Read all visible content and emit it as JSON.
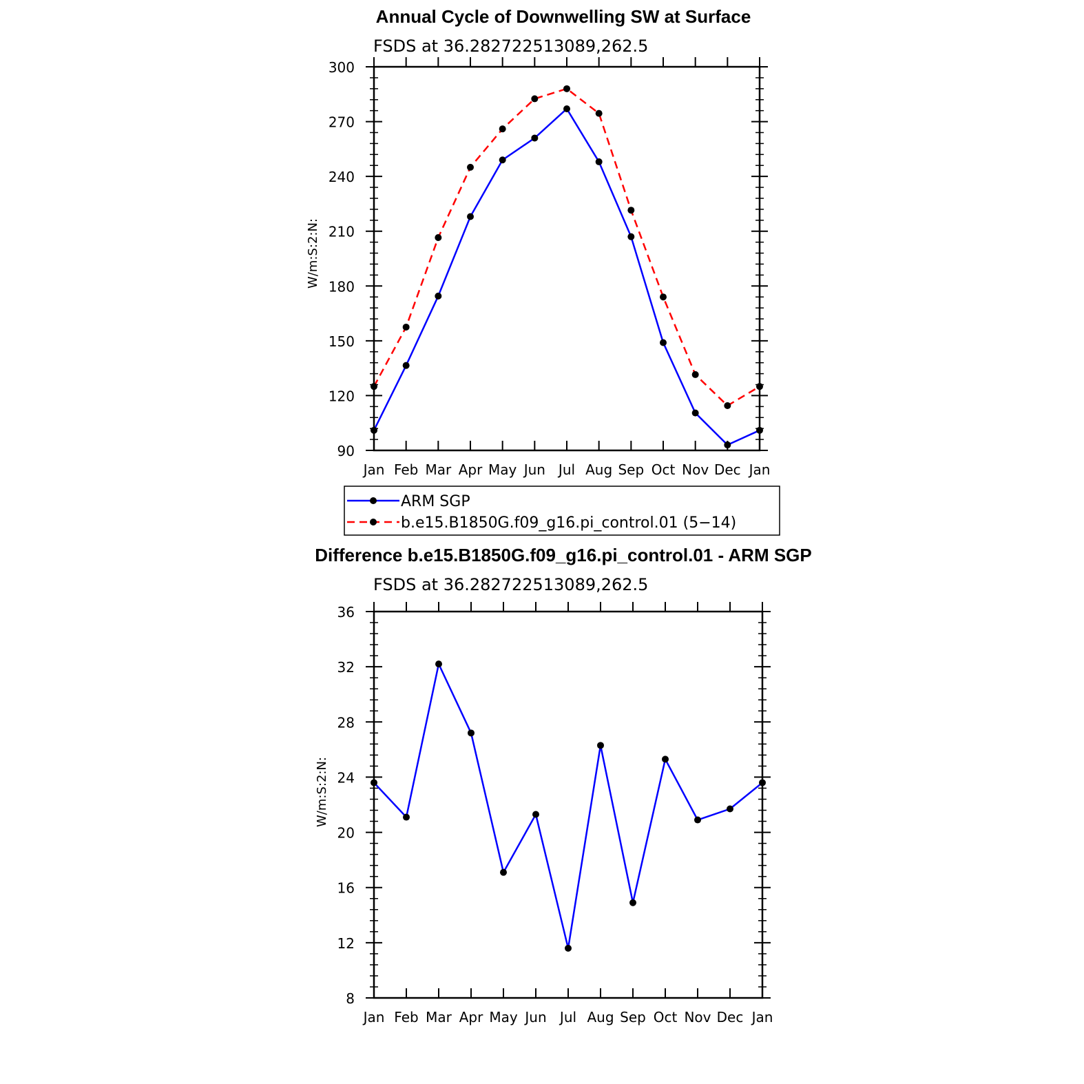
{
  "chart_data": [
    {
      "type": "line",
      "title": "Annual Cycle of Downwelling SW at Surface",
      "subtitle": "FSDS at 36.282722513089,262.5",
      "ylabel": "W/m:S:2:N:",
      "categories": [
        "Jan",
        "Feb",
        "Mar",
        "Apr",
        "May",
        "Jun",
        "Jul",
        "Aug",
        "Sep",
        "Oct",
        "Nov",
        "Dec",
        "Jan"
      ],
      "ylim": [
        90,
        300
      ],
      "yticks": [
        90,
        120,
        150,
        180,
        210,
        240,
        270,
        300
      ],
      "legend_position": "bottom",
      "series": [
        {
          "name": "ARM SGP",
          "color": "#0000ff",
          "dash": "solid",
          "values": [
            101,
            136.5,
            174.5,
            218,
            249,
            261,
            277,
            248,
            207,
            149,
            110.5,
            93,
            101
          ]
        },
        {
          "name": "b.e15.B1850G.f09_g16.pi_control.01 (5−14)",
          "color": "#ff0000",
          "dash": "dashed",
          "values": [
            125,
            157.5,
            206.5,
            245,
            266,
            282.5,
            288,
            274.5,
            221.5,
            174,
            131.5,
            114.5,
            125
          ]
        }
      ]
    },
    {
      "type": "line",
      "title": "Difference b.e15.B1850G.f09_g16.pi_control.01 - ARM SGP",
      "subtitle": "FSDS at 36.282722513089,262.5",
      "ylabel": "W/m:S:2:N:",
      "categories": [
        "Jan",
        "Feb",
        "Mar",
        "Apr",
        "May",
        "Jun",
        "Jul",
        "Aug",
        "Sep",
        "Oct",
        "Nov",
        "Dec",
        "Jan"
      ],
      "ylim": [
        8,
        36
      ],
      "yticks": [
        8,
        12,
        16,
        20,
        24,
        28,
        32,
        36
      ],
      "series": [
        {
          "color": "#0000ff",
          "dash": "solid",
          "values": [
            23.6,
            21.1,
            32.2,
            27.2,
            17.1,
            21.3,
            11.6,
            26.3,
            14.9,
            25.3,
            20.9,
            21.7,
            23.6
          ]
        }
      ]
    }
  ]
}
